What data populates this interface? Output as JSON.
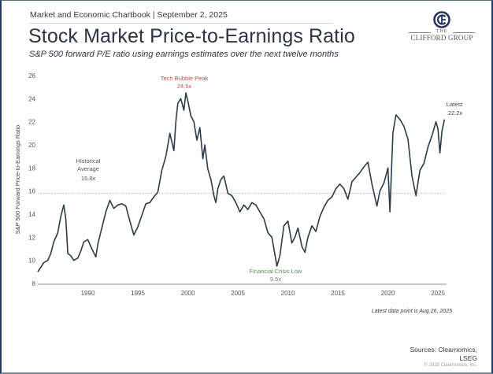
{
  "header": {
    "kicker": "Market and Economic Chartbook | September 2, 2025",
    "title": "Stock Market Price-to-Earnings Ratio",
    "subtitle": "S&P 500 forward P/E ratio using earnings estimates over the next twelve months"
  },
  "logo": {
    "the": "THE",
    "name": "CLIFFORD GROUP"
  },
  "colors": {
    "line": "#2c3a4a",
    "average_line": "#e8a0a0",
    "peak_label": "#c0504d",
    "low_label": "#5a8a5a",
    "axis": "#b5b5b5",
    "frame": "#1f3a5c"
  },
  "chart_data": {
    "type": "line",
    "title": "Stock Market Price-to-Earnings Ratio",
    "xlabel": "",
    "ylabel": "S&P 500 Forward Price-to-Earnings Ratio",
    "xlim": [
      1985,
      2025.7
    ],
    "ylim": [
      8,
      26
    ],
    "yticks": [
      "8",
      "10",
      "12",
      "14",
      "16",
      "18",
      "20",
      "22",
      "24",
      "26"
    ],
    "ytick_values": [
      8,
      10,
      12,
      14,
      16,
      18,
      20,
      22,
      24,
      26
    ],
    "xticks": [
      "1990",
      "1995",
      "2000",
      "2005",
      "2010",
      "2015",
      "2020",
      "2025"
    ],
    "xtick_values": [
      1990,
      1995,
      2000,
      2005,
      2010,
      2015,
      2020,
      2025
    ],
    "grid": false,
    "reference_line": {
      "y": 15.8,
      "label": "Historical Average",
      "value_label": "15.8x"
    },
    "annotations": [
      {
        "label": "Tech Bubble Peak",
        "value_label": "24.5x",
        "x": 1999.8,
        "y": 24.5
      },
      {
        "label": "Financial Crisis Low",
        "value_label": "9.5x",
        "x": 2008.9,
        "y": 9.5
      },
      {
        "label": "Latest",
        "value_label": "22.2x",
        "x": 2025.65,
        "y": 22.2
      }
    ],
    "footnote": "Latest data point is Aug 26, 2025",
    "series": [
      {
        "name": "S&P 500 Forward P/E",
        "x": [
          1985.0,
          1985.3,
          1985.6,
          1986.0,
          1986.3,
          1986.6,
          1987.0,
          1987.3,
          1987.6,
          1987.8,
          1988.0,
          1988.3,
          1988.6,
          1989.0,
          1989.3,
          1989.6,
          1990.0,
          1990.4,
          1990.8,
          1991.0,
          1991.4,
          1991.8,
          1992.2,
          1992.6,
          1993.0,
          1993.4,
          1993.8,
          1994.2,
          1994.6,
          1995.0,
          1995.4,
          1995.8,
          1996.2,
          1996.6,
          1997.0,
          1997.4,
          1997.8,
          1998.2,
          1998.6,
          1998.8,
          1999.0,
          1999.3,
          1999.6,
          1999.8,
          2000.0,
          2000.3,
          2000.6,
          2000.9,
          2001.2,
          2001.5,
          2001.7,
          2002.0,
          2002.3,
          2002.6,
          2002.8,
          2003.0,
          2003.3,
          2003.6,
          2004.0,
          2004.4,
          2004.8,
          2005.2,
          2005.6,
          2006.0,
          2006.4,
          2006.8,
          2007.2,
          2007.6,
          2008.0,
          2008.4,
          2008.7,
          2008.9,
          2009.2,
          2009.6,
          2010.0,
          2010.4,
          2010.7,
          2011.0,
          2011.4,
          2011.7,
          2012.0,
          2012.4,
          2012.8,
          2013.2,
          2013.6,
          2014.0,
          2014.4,
          2014.8,
          2015.2,
          2015.6,
          2016.0,
          2016.4,
          2016.8,
          2017.2,
          2017.6,
          2018.0,
          2018.4,
          2018.9,
          2019.2,
          2019.6,
          2020.0,
          2020.2,
          2020.5,
          2020.8,
          2021.2,
          2021.6,
          2022.0,
          2022.4,
          2022.8,
          2023.2,
          2023.6,
          2024.0,
          2024.4,
          2024.8,
          2025.0,
          2025.2,
          2025.4,
          2025.65
        ],
        "values": [
          9.0,
          9.4,
          9.8,
          10.0,
          10.6,
          11.6,
          12.4,
          13.8,
          14.8,
          13.6,
          10.6,
          10.4,
          10.0,
          10.2,
          10.8,
          11.6,
          11.8,
          11.0,
          10.3,
          11.4,
          12.8,
          14.2,
          15.2,
          14.5,
          14.8,
          14.9,
          14.7,
          13.4,
          12.2,
          12.9,
          13.9,
          14.9,
          15.0,
          15.5,
          15.9,
          17.8,
          19.0,
          21.0,
          19.5,
          22.0,
          23.6,
          24.0,
          23.0,
          24.5,
          23.8,
          22.5,
          22.0,
          20.4,
          21.5,
          18.8,
          20.0,
          17.9,
          17.0,
          15.6,
          15.0,
          16.2,
          17.0,
          17.3,
          15.8,
          15.6,
          15.0,
          14.2,
          14.8,
          14.4,
          15.0,
          14.8,
          14.2,
          13.6,
          12.4,
          12.0,
          10.5,
          9.5,
          10.4,
          13.0,
          13.4,
          11.5,
          12.0,
          12.8,
          11.2,
          10.7,
          12.0,
          13.0,
          12.5,
          13.8,
          14.6,
          15.2,
          15.5,
          16.2,
          16.6,
          16.2,
          15.3,
          16.8,
          17.2,
          17.6,
          18.1,
          18.5,
          16.6,
          14.7,
          16.0,
          16.7,
          18.0,
          14.2,
          21.0,
          22.6,
          22.2,
          21.6,
          20.5,
          17.3,
          15.6,
          17.8,
          18.4,
          19.8,
          20.8,
          22.0,
          21.4,
          19.3,
          21.2,
          22.2
        ]
      }
    ]
  }
}
